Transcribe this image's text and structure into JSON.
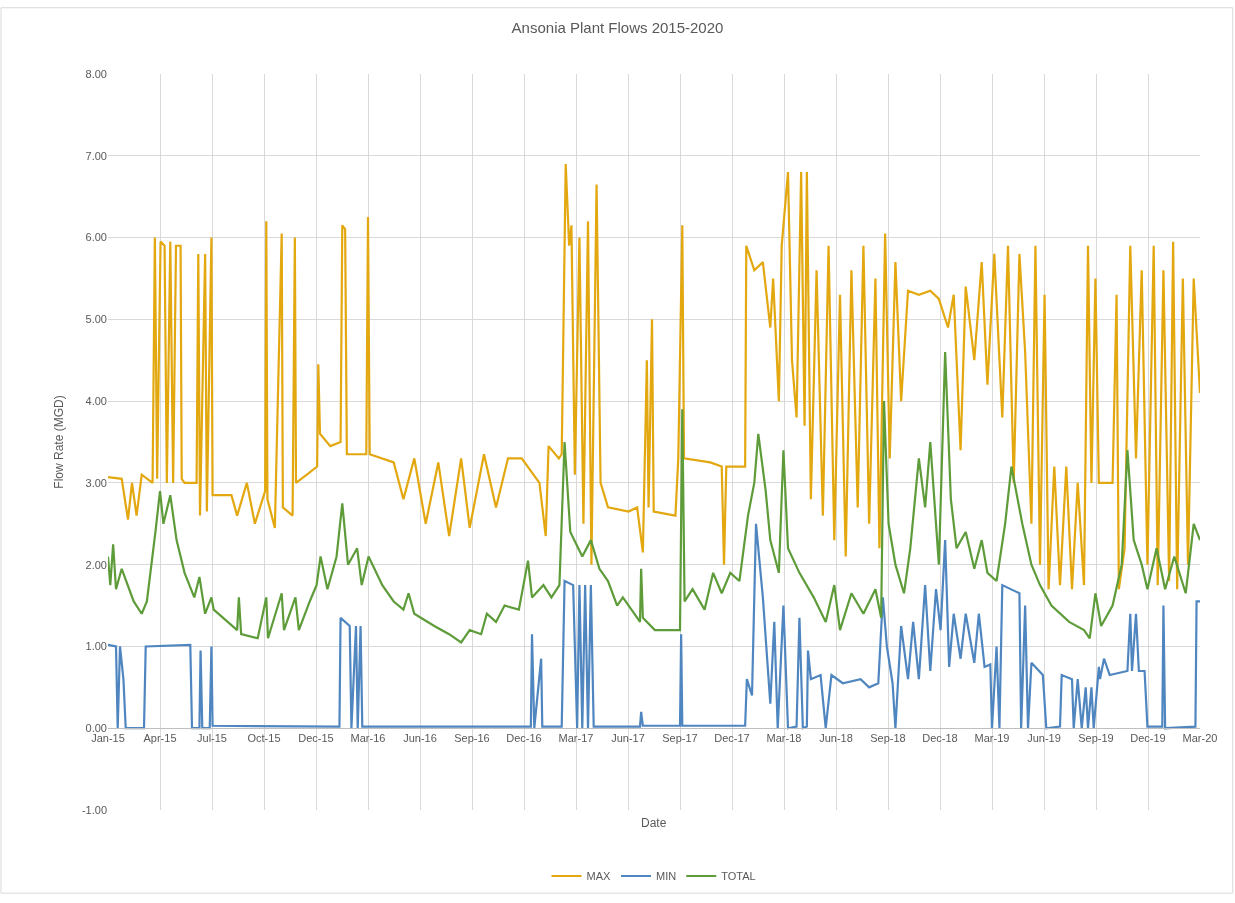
{
  "chart_data": {
    "type": "line",
    "title": "Ansonia Plant Flows 2015-2020",
    "xlabel": "Date",
    "ylabel": "Flow Rate (MGD)",
    "xlim": [
      "2015-01-01",
      "2020-03-26"
    ],
    "xticks": [
      {
        "value": "2015-01-01",
        "label": "Jan-15"
      },
      {
        "value": "2015-04-02",
        "label": "Apr-15"
      },
      {
        "value": "2015-07-02",
        "label": "Jul-15"
      },
      {
        "value": "2015-10-01",
        "label": "Oct-15"
      },
      {
        "value": "2015-12-31",
        "label": "Dec-15"
      },
      {
        "value": "2016-03-31",
        "label": "Mar-16"
      },
      {
        "value": "2016-06-30",
        "label": "Jun-16"
      },
      {
        "value": "2016-09-29",
        "label": "Sep-16"
      },
      {
        "value": "2016-12-29",
        "label": "Dec-16"
      },
      {
        "value": "2017-03-30",
        "label": "Mar-17"
      },
      {
        "value": "2017-06-29",
        "label": "Jun-17"
      },
      {
        "value": "2017-09-28",
        "label": "Sep-17"
      },
      {
        "value": "2017-12-28",
        "label": "Dec-17"
      },
      {
        "value": "2018-03-29",
        "label": "Mar-18"
      },
      {
        "value": "2018-06-28",
        "label": "Jun-18"
      },
      {
        "value": "2018-09-27",
        "label": "Sep-18"
      },
      {
        "value": "2018-12-27",
        "label": "Dec-18"
      },
      {
        "value": "2019-03-28",
        "label": "Mar-19"
      },
      {
        "value": "2019-06-27",
        "label": "Jun-19"
      },
      {
        "value": "2019-09-26",
        "label": "Sep-19"
      },
      {
        "value": "2019-12-26",
        "label": "Dec-19"
      },
      {
        "value": "2020-03-26",
        "label": "Mar-20"
      }
    ],
    "ylim": [
      -1,
      8
    ],
    "yticks": [
      {
        "value": -1,
        "label": "-1.00"
      },
      {
        "value": 0,
        "label": "0.00"
      },
      {
        "value": 1,
        "label": "1.00"
      },
      {
        "value": 2,
        "label": "2.00"
      },
      {
        "value": 3,
        "label": "3.00"
      },
      {
        "value": 4,
        "label": "4.00"
      },
      {
        "value": 5,
        "label": "5.00"
      },
      {
        "value": 6,
        "label": "6.00"
      },
      {
        "value": 7,
        "label": "7.00"
      },
      {
        "value": 8,
        "label": "8.00"
      }
    ],
    "grid": true,
    "legend": "bottom",
    "marker": "none",
    "line_style": "solid",
    "series": [
      {
        "name": "MAX",
        "color": "#e3a810",
        "x": [
          "2015-01-01",
          "2015-01-25",
          "2015-02-05",
          "2015-02-12",
          "2015-02-20",
          "2015-03-01",
          "2015-03-20",
          "2015-03-24",
          "2015-03-28",
          "2015-04-03",
          "2015-04-10",
          "2015-04-14",
          "2015-04-20",
          "2015-04-25",
          "2015-04-30",
          "2015-05-08",
          "2015-05-10",
          "2015-05-15",
          "2015-06-05",
          "2015-06-08",
          "2015-06-11",
          "2015-06-20",
          "2015-06-23",
          "2015-07-01",
          "2015-07-03",
          "2015-08-05",
          "2015-08-15",
          "2015-09-01",
          "2015-09-15",
          "2015-10-03",
          "2015-10-05",
          "2015-10-07",
          "2015-10-20",
          "2015-11-01",
          "2015-11-03",
          "2015-11-20",
          "2015-11-24",
          "2015-11-26",
          "2015-12-15",
          "2016-01-02",
          "2016-01-04",
          "2016-01-07",
          "2016-01-25",
          "2016-02-12",
          "2016-02-15",
          "2016-02-20",
          "2016-02-23",
          "2016-03-28",
          "2016-03-31",
          "2016-04-03",
          "2016-05-15",
          "2016-06-01",
          "2016-06-20",
          "2016-07-10",
          "2016-08-01",
          "2016-08-20",
          "2016-09-10",
          "2016-09-25",
          "2016-10-20",
          "2016-11-10",
          "2016-12-01",
          "2016-12-25",
          "2017-01-25",
          "2017-02-05",
          "2017-02-10",
          "2017-02-28",
          "2017-03-05",
          "2017-03-12",
          "2017-03-18",
          "2017-03-22",
          "2017-03-28",
          "2017-04-05",
          "2017-04-12",
          "2017-04-20",
          "2017-04-26",
          "2017-05-05",
          "2017-05-12",
          "2017-05-25",
          "2017-06-30",
          "2017-07-15",
          "2017-07-25",
          "2017-08-01",
          "2017-08-04",
          "2017-08-10",
          "2017-08-13",
          "2017-09-20",
          "2017-09-25",
          "2017-10-02",
          "2017-10-05",
          "2017-11-20",
          "2017-12-10",
          "2017-12-14",
          "2017-12-18",
          "2018-01-20",
          "2018-01-22",
          "2018-02-05",
          "2018-02-20",
          "2018-03-05",
          "2018-03-10",
          "2018-03-20",
          "2018-03-25",
          "2018-04-05",
          "2018-04-12",
          "2018-04-20",
          "2018-04-28",
          "2018-05-04",
          "2018-05-08",
          "2018-05-15",
          "2018-05-25",
          "2018-06-05",
          "2018-06-15",
          "2018-06-25",
          "2018-07-05",
          "2018-07-15",
          "2018-07-25",
          "2018-08-05",
          "2018-08-15",
          "2018-08-25",
          "2018-09-05",
          "2018-09-12",
          "2018-09-22",
          "2018-09-30",
          "2018-10-10",
          "2018-10-20",
          "2018-11-01",
          "2018-11-20",
          "2018-12-10",
          "2018-12-25",
          "2019-01-10",
          "2019-01-20",
          "2019-02-01",
          "2019-02-10",
          "2019-02-25",
          "2019-03-10",
          "2019-03-20",
          "2019-04-01",
          "2019-04-15",
          "2019-04-25",
          "2019-05-05",
          "2019-05-15",
          "2019-05-25",
          "2019-06-05",
          "2019-06-12",
          "2019-06-20",
          "2019-06-28",
          "2019-07-05",
          "2019-07-15",
          "2019-07-25",
          "2019-08-05",
          "2019-08-15",
          "2019-08-25",
          "2019-09-05",
          "2019-09-12",
          "2019-09-18",
          "2019-09-25",
          "2019-10-01",
          "2019-10-25",
          "2019-11-01",
          "2019-11-05",
          "2019-11-15",
          "2019-11-25",
          "2019-12-05",
          "2019-12-15",
          "2019-12-25",
          "2020-01-05",
          "2020-01-12",
          "2020-01-22",
          "2020-02-01",
          "2020-02-08",
          "2020-02-15",
          "2020-02-25",
          "2020-03-05",
          "2020-03-15",
          "2020-03-26"
        ],
        "values": [
          3.07,
          3.05,
          2.55,
          3.0,
          2.6,
          3.1,
          3.0,
          6.0,
          3.05,
          5.95,
          5.9,
          3.0,
          5.95,
          3.0,
          5.9,
          5.9,
          3.05,
          3.0,
          3.0,
          5.8,
          2.6,
          5.8,
          2.65,
          6.0,
          2.85,
          2.85,
          2.6,
          3.0,
          2.5,
          2.9,
          6.2,
          2.8,
          2.45,
          6.05,
          2.7,
          2.6,
          6.0,
          3.0,
          3.1,
          3.2,
          4.45,
          3.6,
          3.45,
          3.5,
          6.15,
          6.1,
          3.35,
          3.35,
          6.25,
          3.35,
          3.25,
          2.8,
          3.3,
          2.5,
          3.25,
          2.35,
          3.3,
          2.45,
          3.35,
          2.7,
          3.3,
          3.3,
          3.0,
          2.35,
          3.45,
          3.3,
          3.35,
          6.9,
          5.9,
          6.15,
          3.1,
          6.0,
          2.5,
          6.2,
          2.0,
          6.65,
          3.0,
          2.7,
          2.65,
          2.7,
          2.15,
          4.5,
          2.7,
          5.0,
          2.65,
          2.6,
          3.3,
          6.15,
          3.3,
          3.25,
          3.2,
          2.0,
          3.2,
          3.2,
          5.9,
          5.6,
          5.7,
          4.9,
          5.5,
          4.0,
          5.9,
          6.8,
          4.5,
          3.8,
          6.8,
          3.7,
          6.8,
          2.8,
          5.6,
          2.6,
          5.9,
          2.3,
          5.3,
          2.1,
          5.6,
          2.7,
          5.9,
          2.5,
          5.5,
          2.2,
          6.05,
          3.3,
          5.7,
          4.0,
          5.35,
          5.3,
          5.35,
          5.25,
          4.9,
          5.3,
          3.4,
          5.4,
          4.5,
          5.7,
          4.2,
          5.8,
          3.8,
          5.9,
          3.0,
          5.8,
          4.6,
          2.5,
          5.9,
          2.0,
          5.3,
          1.7,
          3.2,
          1.75,
          3.2,
          1.7,
          3.0,
          1.75,
          5.9,
          3.0,
          5.5,
          3.0,
          3.0,
          5.3,
          1.7,
          2.2,
          5.9,
          3.3,
          5.6,
          2.0,
          5.9,
          1.75,
          5.6,
          1.8,
          5.95,
          1.7,
          5.5,
          2.0,
          5.5,
          4.1
        ]
      },
      {
        "name": "MIN",
        "color": "#4f86c0",
        "x": [
          "2015-01-01",
          "2015-01-15",
          "2015-01-18",
          "2015-01-22",
          "2015-01-28",
          "2015-02-01",
          "2015-03-05",
          "2015-03-08",
          "2015-05-25",
          "2015-05-28",
          "2015-06-10",
          "2015-06-12",
          "2015-06-15",
          "2015-06-28",
          "2015-07-01",
          "2015-07-03",
          "2016-02-10",
          "2016-02-12",
          "2016-02-28",
          "2016-03-02",
          "2016-03-10",
          "2016-03-13",
          "2016-03-18",
          "2016-03-21",
          "2017-01-10",
          "2017-01-12",
          "2017-01-16",
          "2017-01-28",
          "2017-01-30",
          "2017-03-05",
          "2017-03-10",
          "2017-03-25",
          "2017-04-01",
          "2017-04-05",
          "2017-04-10",
          "2017-04-15",
          "2017-04-20",
          "2017-04-25",
          "2017-04-30",
          "2017-07-20",
          "2017-07-22",
          "2017-07-25",
          "2017-09-28",
          "2017-09-30",
          "2017-10-02",
          "2018-01-20",
          "2018-01-23",
          "2018-02-01",
          "2018-02-08",
          "2018-02-20",
          "2018-03-05",
          "2018-03-12",
          "2018-03-18",
          "2018-03-28",
          "2018-04-05",
          "2018-04-20",
          "2018-04-25",
          "2018-05-01",
          "2018-05-08",
          "2018-05-10",
          "2018-05-15",
          "2018-06-01",
          "2018-06-10",
          "2018-06-20",
          "2018-07-10",
          "2018-08-10",
          "2018-08-25",
          "2018-09-10",
          "2018-09-18",
          "2018-09-25",
          "2018-10-05",
          "2018-10-10",
          "2018-10-20",
          "2018-11-01",
          "2018-11-10",
          "2018-11-20",
          "2018-12-01",
          "2018-12-10",
          "2018-12-20",
          "2018-12-28",
          "2019-01-05",
          "2019-01-12",
          "2019-01-20",
          "2019-02-01",
          "2019-02-10",
          "2019-02-25",
          "2019-03-05",
          "2019-03-15",
          "2019-03-25",
          "2019-03-28",
          "2019-04-05",
          "2019-04-10",
          "2019-04-15",
          "2019-05-15",
          "2019-05-18",
          "2019-05-25",
          "2019-05-30",
          "2019-06-05",
          "2019-06-25",
          "2019-07-01",
          "2019-07-25",
          "2019-07-28",
          "2019-08-15",
          "2019-08-18",
          "2019-08-25",
          "2019-09-01",
          "2019-09-08",
          "2019-09-12",
          "2019-09-18",
          "2019-09-22",
          "2019-10-01",
          "2019-10-03",
          "2019-10-10",
          "2019-10-20",
          "2019-11-20",
          "2019-11-25",
          "2019-11-28",
          "2019-12-05",
          "2019-12-10",
          "2019-12-20",
          "2019-12-25",
          "2020-01-20",
          "2020-01-22",
          "2020-01-25",
          "2020-03-18",
          "2020-03-20",
          "2020-03-26"
        ],
        "values": [
          1.02,
          1.0,
          0.0,
          1.0,
          0.6,
          0.0,
          0.0,
          1.0,
          1.02,
          0.0,
          0.0,
          0.95,
          0.0,
          0.0,
          1.0,
          0.03,
          0.02,
          1.35,
          1.25,
          0.0,
          1.25,
          0.0,
          1.25,
          0.02,
          0.02,
          1.15,
          0.0,
          0.85,
          0.02,
          0.02,
          1.8,
          1.75,
          0.0,
          1.75,
          0.0,
          1.75,
          0.0,
          1.75,
          0.02,
          0.02,
          0.2,
          0.03,
          0.03,
          1.15,
          0.03,
          0.03,
          0.6,
          0.4,
          2.5,
          1.6,
          0.3,
          1.3,
          0.0,
          1.5,
          0.0,
          0.02,
          1.35,
          0.0,
          0.02,
          0.95,
          0.6,
          0.65,
          0.0,
          0.65,
          0.55,
          0.6,
          0.5,
          0.55,
          1.6,
          1.0,
          0.55,
          0.0,
          1.25,
          0.6,
          1.3,
          0.6,
          1.75,
          0.7,
          1.7,
          1.2,
          2.3,
          0.75,
          1.4,
          0.85,
          1.4,
          0.8,
          1.4,
          0.75,
          0.78,
          0.0,
          1.0,
          0.0,
          1.75,
          1.65,
          0.0,
          1.5,
          0.0,
          0.8,
          0.65,
          0.0,
          0.02,
          0.65,
          0.6,
          0.0,
          0.6,
          0.0,
          0.5,
          0.0,
          0.5,
          0.0,
          0.75,
          0.6,
          0.85,
          0.65,
          0.7,
          1.4,
          0.7,
          1.4,
          0.7,
          0.7,
          0.02,
          0.02,
          1.5,
          0.0,
          0.02,
          1.55,
          1.55
        ]
      },
      {
        "name": "TOTAL",
        "color": "#5e9c3a",
        "x": [
          "2015-01-01",
          "2015-01-05",
          "2015-01-10",
          "2015-01-15",
          "2015-01-25",
          "2015-02-15",
          "2015-03-01",
          "2015-03-10",
          "2015-03-25",
          "2015-04-02",
          "2015-04-08",
          "2015-04-20",
          "2015-05-01",
          "2015-05-15",
          "2015-06-01",
          "2015-06-10",
          "2015-06-20",
          "2015-07-01",
          "2015-07-05",
          "2015-08-15",
          "2015-08-18",
          "2015-08-22",
          "2015-09-20",
          "2015-10-05",
          "2015-10-08",
          "2015-11-01",
          "2015-11-05",
          "2015-11-25",
          "2015-12-01",
          "2015-12-20",
          "2016-01-01",
          "2016-01-08",
          "2016-01-20",
          "2016-02-05",
          "2016-02-15",
          "2016-02-25",
          "2016-03-12",
          "2016-03-20",
          "2016-04-01",
          "2016-04-25",
          "2016-05-15",
          "2016-06-01",
          "2016-06-10",
          "2016-06-20",
          "2016-07-25",
          "2016-08-20",
          "2016-09-10",
          "2016-09-25",
          "2016-10-15",
          "2016-10-25",
          "2016-11-10",
          "2016-11-25",
          "2016-12-20",
          "2017-01-05",
          "2017-01-12",
          "2017-02-01",
          "2017-02-15",
          "2017-03-01",
          "2017-03-10",
          "2017-03-20",
          "2017-04-10",
          "2017-04-25",
          "2017-05-10",
          "2017-05-25",
          "2017-06-10",
          "2017-06-20",
          "2017-07-10",
          "2017-07-20",
          "2017-07-22",
          "2017-07-25",
          "2017-08-15",
          "2017-09-28",
          "2017-10-02",
          "2017-10-06",
          "2017-10-20",
          "2017-11-10",
          "2017-11-25",
          "2017-12-10",
          "2017-12-25",
          "2018-01-10",
          "2018-01-25",
          "2018-02-05",
          "2018-02-12",
          "2018-02-25",
          "2018-03-05",
          "2018-03-20",
          "2018-03-28",
          "2018-04-05",
          "2018-04-25",
          "2018-05-20",
          "2018-06-10",
          "2018-06-25",
          "2018-07-05",
          "2018-07-25",
          "2018-08-15",
          "2018-09-05",
          "2018-09-15",
          "2018-09-20",
          "2018-09-28",
          "2018-10-10",
          "2018-10-25",
          "2018-11-05",
          "2018-11-20",
          "2018-12-01",
          "2018-12-10",
          "2018-12-25",
          "2019-01-05",
          "2019-01-15",
          "2019-01-25",
          "2019-02-10",
          "2019-02-25",
          "2019-03-10",
          "2019-03-20",
          "2019-04-05",
          "2019-04-20",
          "2019-05-01",
          "2019-05-20",
          "2019-06-05",
          "2019-06-20",
          "2019-07-10",
          "2019-08-10",
          "2019-09-05",
          "2019-09-15",
          "2019-09-25",
          "2019-10-05",
          "2019-10-25",
          "2019-11-10",
          "2019-11-20",
          "2019-12-01",
          "2019-12-15",
          "2019-12-25",
          "2020-01-10",
          "2020-01-25",
          "2020-02-10",
          "2020-03-01",
          "2020-03-15",
          "2020-03-26"
        ],
        "values": [
          2.1,
          1.75,
          2.25,
          1.7,
          1.95,
          1.55,
          1.4,
          1.55,
          2.4,
          2.9,
          2.5,
          2.85,
          2.3,
          1.9,
          1.6,
          1.85,
          1.4,
          1.6,
          1.45,
          1.2,
          1.6,
          1.15,
          1.1,
          1.6,
          1.1,
          1.65,
          1.2,
          1.6,
          1.2,
          1.55,
          1.75,
          2.1,
          1.7,
          2.1,
          2.75,
          2.0,
          2.2,
          1.75,
          2.1,
          1.75,
          1.55,
          1.45,
          1.65,
          1.4,
          1.25,
          1.15,
          1.05,
          1.2,
          1.15,
          1.4,
          1.3,
          1.5,
          1.45,
          2.05,
          1.6,
          1.75,
          1.6,
          1.75,
          3.5,
          2.4,
          2.1,
          2.3,
          1.95,
          1.8,
          1.5,
          1.6,
          1.4,
          1.3,
          1.95,
          1.35,
          1.2,
          1.2,
          3.9,
          1.55,
          1.7,
          1.45,
          1.9,
          1.65,
          1.9,
          1.8,
          2.6,
          3.0,
          3.6,
          2.9,
          2.3,
          1.9,
          3.4,
          2.2,
          1.9,
          1.6,
          1.3,
          1.75,
          1.2,
          1.65,
          1.4,
          1.7,
          1.35,
          4.0,
          2.5,
          2.0,
          1.65,
          2.2,
          3.3,
          2.7,
          3.5,
          2.0,
          4.6,
          2.8,
          2.2,
          2.4,
          1.95,
          2.3,
          1.9,
          1.8,
          2.5,
          3.2,
          2.5,
          2.0,
          1.75,
          1.5,
          1.3,
          1.2,
          1.1,
          1.65,
          1.25,
          1.5,
          2.0,
          3.4,
          2.3,
          2.0,
          1.7,
          2.2,
          1.7,
          2.1,
          1.65,
          2.5,
          2.3
        ]
      }
    ]
  }
}
